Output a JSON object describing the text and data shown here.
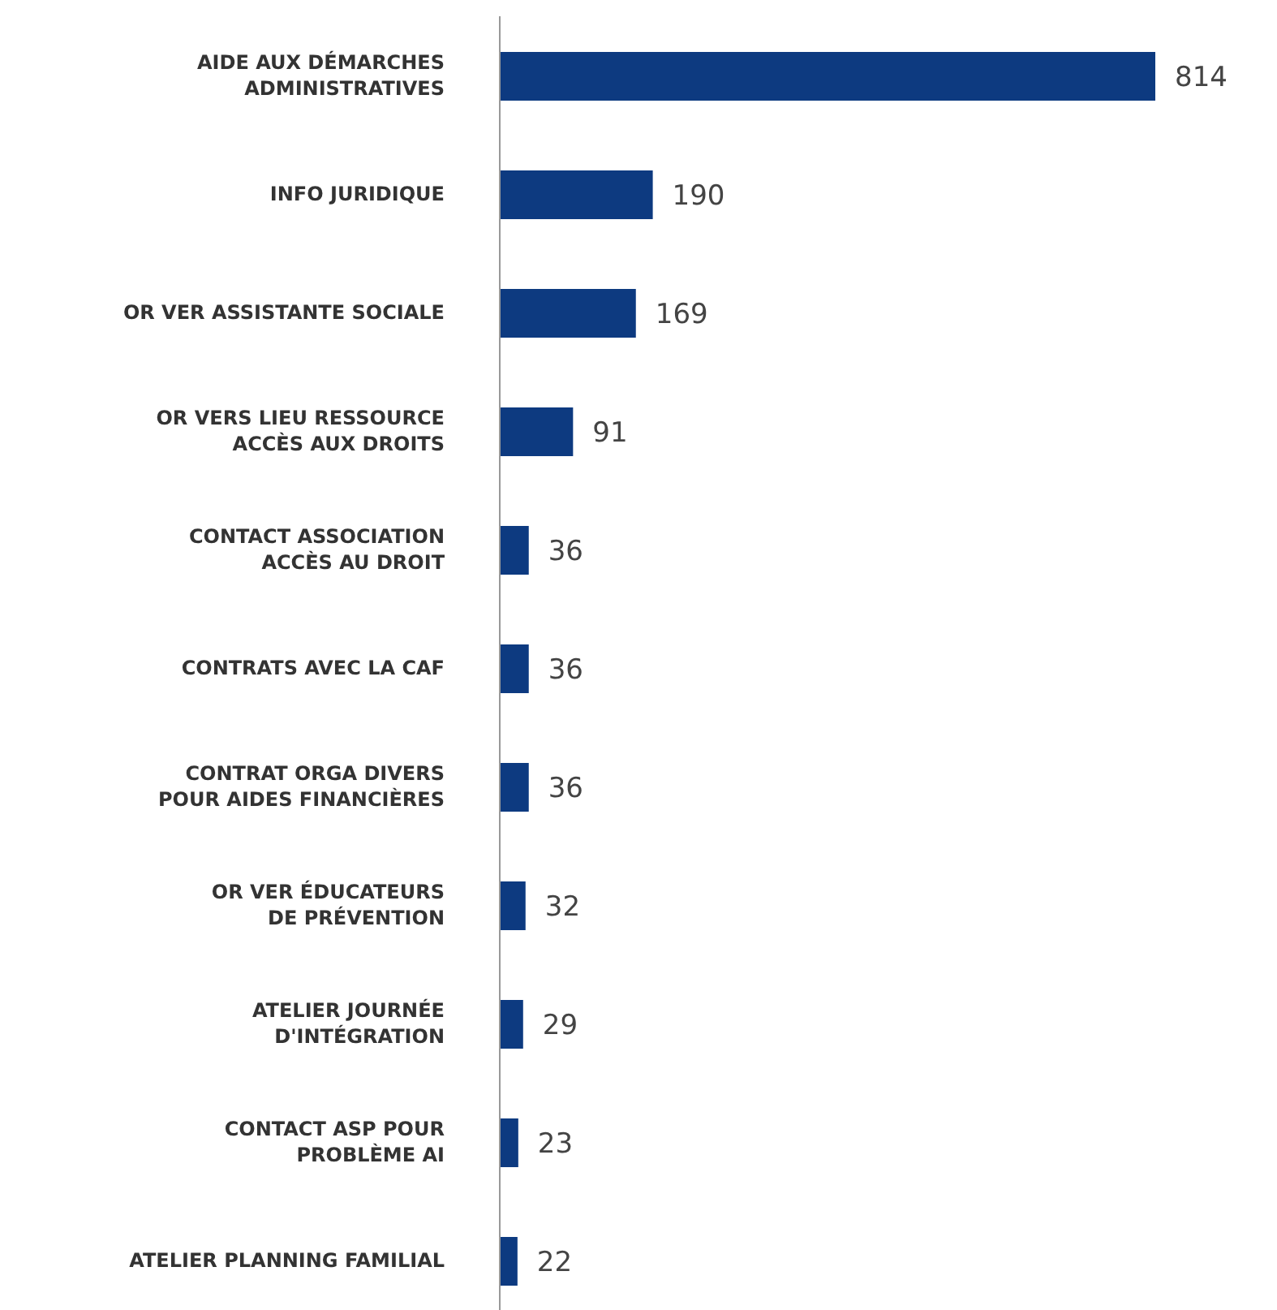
{
  "chart_data": {
    "type": "bar",
    "orientation": "horizontal",
    "categories": [
      "AIDE AUX DÉMARCHES ADMINISTRATIVES",
      "INFO JURIDIQUE",
      "OR VER ASSISTANTE SOCIALE",
      "OR VERS LIEU RESSOURCE ACCÈS AUX DROITS",
      "CONTACT ASSOCIATION ACCÈS AU DROIT",
      "CONTRATS AVEC LA CAF",
      "CONTRAT ORGA DIVERS POUR AIDES FINANCIÈRES",
      "OR VER ÉDUCATEURS DE PRÉVENTION",
      "ATELIER JOURNÉE D'INTÉGRATION",
      "CONTACT ASP POUR PROBLÈME AI",
      "ATELIER PLANNING FAMILIAL"
    ],
    "values": [
      814,
      190,
      169,
      91,
      36,
      36,
      36,
      32,
      29,
      23,
      22
    ],
    "color": "#0d3a80",
    "data_labels": true,
    "grid": false,
    "legend": false
  }
}
